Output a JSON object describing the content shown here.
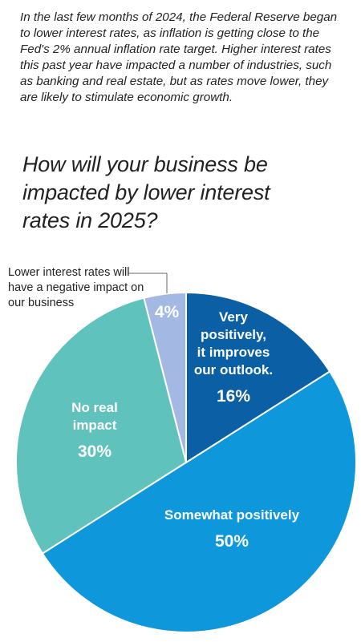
{
  "intro_text": "In the last few months of 2024, the Federal Reserve began to lower interest rates, as inflation is getting close to the Fed's 2% annual inflation rate target. Higher interest rates this past year have impacted a number of industries, such as banking and real estate, but as rates move lower, they are likely to stimulate economic growth.",
  "chart_data": {
    "type": "pie",
    "title": "How will your business be impacted by lower interest rates in 2025?",
    "slices": [
      {
        "label_lines": [
          "Very",
          "positively,",
          "it improves",
          "our outlook."
        ],
        "value": 16,
        "value_label": "16%",
        "color": "#0b5fa5"
      },
      {
        "label_lines": [
          "Somewhat positively"
        ],
        "value": 50,
        "value_label": "50%",
        "color": "#0f97dc"
      },
      {
        "label_lines": [
          "No real",
          "impact"
        ],
        "value": 30,
        "value_label": "30%",
        "color": "#5fc2bc"
      },
      {
        "label_lines": [],
        "value": 4,
        "value_label": "4%",
        "color": "#a3b9e3"
      }
    ],
    "callout_text": "Lower interest rates will have a negative impact on our business"
  }
}
